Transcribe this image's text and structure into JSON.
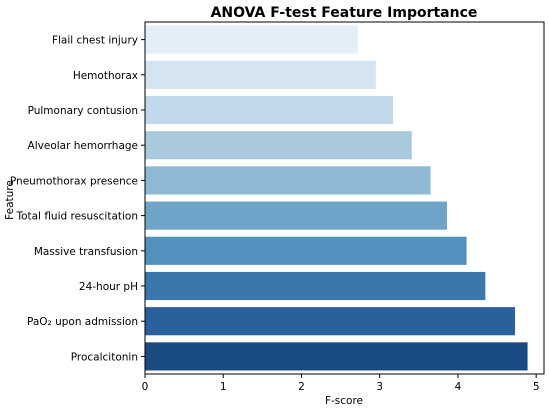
{
  "chart_data": {
    "type": "bar",
    "orientation": "horizontal",
    "title": "ANOVA F-test Feature Importance",
    "xlabel": "F-score",
    "ylabel": "Feature",
    "xlim": [
      0,
      5.1
    ],
    "xticks": [
      "0",
      "1",
      "2",
      "3",
      "4",
      "5"
    ],
    "grid": false,
    "categories": [
      "Flail chest injury",
      "Hemothorax",
      "Pulmonary contusion",
      "Alveolar hemorrhage",
      "Pneumothorax presence",
      "Total fluid resuscitation",
      "Massive transfusion",
      "24-hour pH",
      "PaO₂ upon admission",
      "Procalcitonin"
    ],
    "values": [
      2.72,
      2.95,
      3.17,
      3.41,
      3.65,
      3.86,
      4.11,
      4.35,
      4.73,
      4.89
    ],
    "colors": [
      "#e3eef8",
      "#d4e4f1",
      "#c1d8ea",
      "#a9c9dd",
      "#8db9d4",
      "#6ea4c8",
      "#5291bf",
      "#3a77ac",
      "#2a609c",
      "#1a4a82"
    ]
  }
}
